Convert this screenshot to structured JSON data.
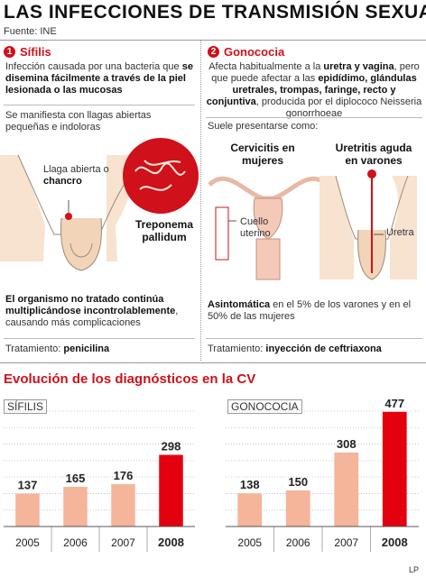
{
  "title": "LAS INFECCIONES DE TRANSMISIÓN SEXUAL",
  "source": "Fuente: INE",
  "credit": "LP",
  "sifilis": {
    "number": "1",
    "heading": "Sífilis",
    "intro_a": "Infección causada por una bacteria",
    "intro_b": "que ",
    "intro_c": "se disemina fácilmente a través de la piel lesionada o las mucosas",
    "manifest": "Se manifiesta con llagas abiertas pequeñas e indoloras",
    "llaga_label": "Llaga abierta o ",
    "chancro": "chancro",
    "bacteria_label": "Treponema pallidum",
    "untreated_bold": "El organismo no tratado continúa multiplicándose incontrolablemente",
    "untreated_rest": ", causando más complicaciones",
    "treatment_label": "Tratamiento: ",
    "treatment_value": "penicilina"
  },
  "gonococia": {
    "number": "2",
    "heading": "Gonococia",
    "intro_a": "Afecta habitualmente a la ",
    "intro_b": "uretra y vagina",
    "intro_c": ", pero que puede afectar a las ",
    "intro_d": "epidídimo, glándulas uretrales, trompas, faringe, recto y conjuntiva",
    "intro_e": ", producida por el diplococo Neisseria gonorrhoeae",
    "suele": "Suele presentarse como:",
    "cervicitis": "Cervicitis en mujeres",
    "uretritis": "Uretritis aguda en varones",
    "cuello_label": "Cuello uterino",
    "uretra_label": "Uretra",
    "asintomatica_bold": "Asintomática",
    "asintomatica_rest": " en el 5% de los varones y en el 50% de las mujeres",
    "treatment_label": "Tratamiento: ",
    "treatment_value": "inyección de ceftriaxona"
  },
  "chart_title": "Evolución de los diagnósticos en la CV",
  "colors": {
    "accent": "#d0101a",
    "bar_light": "#f4b59a",
    "bar_highlight": "#e3000f"
  },
  "chart_data": [
    {
      "type": "bar",
      "title": "SÍFILIS",
      "categories": [
        "2005",
        "2006",
        "2007",
        "2008"
      ],
      "values": [
        137,
        165,
        176,
        298
      ],
      "highlight": "2008",
      "ylim": [
        0,
        480
      ]
    },
    {
      "type": "bar",
      "title": "GONOCOCIA",
      "categories": [
        "2005",
        "2006",
        "2007",
        "2008"
      ],
      "values": [
        138,
        150,
        308,
        477
      ],
      "highlight": "2008",
      "ylim": [
        0,
        480
      ]
    }
  ]
}
